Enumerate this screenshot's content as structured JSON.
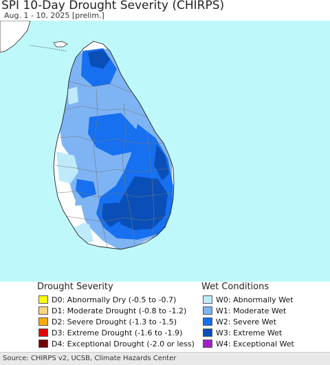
{
  "header": {
    "title": "SPI 10-Day Drought Severity (CHIRPS)",
    "subtitle": "Aug. 1 - 10, 2025 [prelim.]"
  },
  "legend": {
    "drought_title": "Drought Severity",
    "wet_title": "Wet Conditions",
    "drought": [
      {
        "label": "D0: Abnormally Dry (-0.5 to -0.7)",
        "color": "#ffff00"
      },
      {
        "label": "D1: Moderate Drought (-0.8 to -1.2)",
        "color": "#fcd37f"
      },
      {
        "label": "D2: Severe Drought (-1.3 to -1.5)",
        "color": "#ffaa00"
      },
      {
        "label": "D3: Extreme Drought (-1.6 to -1.9)",
        "color": "#e60000"
      },
      {
        "label": "D4: Exceptional Drought (-2.0 or less)",
        "color": "#730000"
      }
    ],
    "wet": [
      {
        "label": "W0: Abnormally Wet",
        "color": "#bfeafc"
      },
      {
        "label": "W1: Moderate Wet",
        "color": "#7fb4f4"
      },
      {
        "label": "W2: Severe Wet",
        "color": "#1670f0"
      },
      {
        "label": "W3: Extreme Wet",
        "color": "#0a4fb8"
      },
      {
        "label": "W4: Exceptional Wet",
        "color": "#a020c8"
      }
    ]
  },
  "source": "Source: CHIRPS v2, UCSB, Climate Hazards Center",
  "map_colors": {
    "ocean": "#bff8fb",
    "land_normal": "#ffffff",
    "w0": "#bfeafc",
    "w1": "#7fb4f4",
    "w2": "#1670f0",
    "w3": "#0a4fb8"
  }
}
